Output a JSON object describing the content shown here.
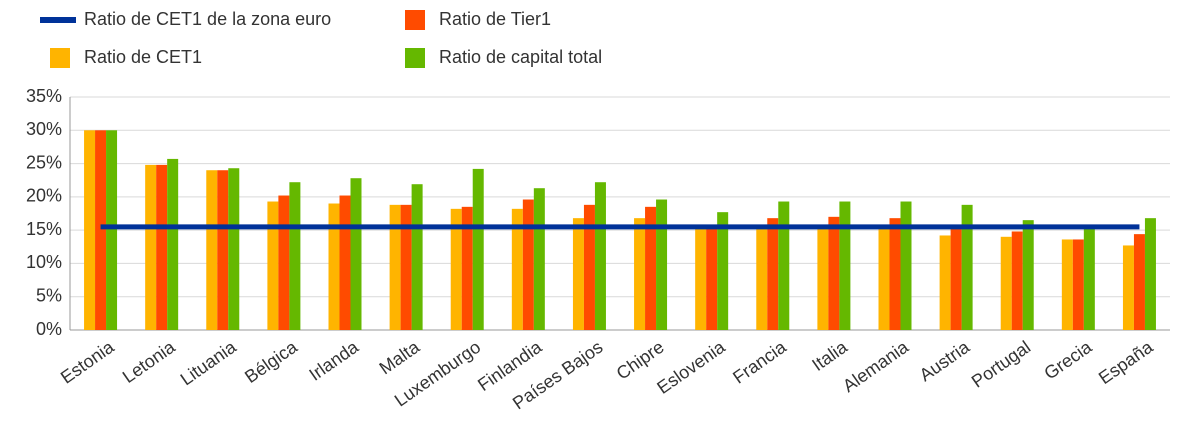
{
  "chart_data": {
    "type": "bar",
    "categories": [
      "Estonia",
      "Letonia",
      "Lituania",
      "Bélgica",
      "Irlanda",
      "Malta",
      "Luxemburgo",
      "Finlandia",
      "Países Bajos",
      "Chipre",
      "Eslovenia",
      "Francia",
      "Italia",
      "Alemania",
      "Austria",
      "Portugal",
      "Grecia",
      "España"
    ],
    "series": [
      {
        "name": "Ratio de CET1 de la zona euro",
        "color": "#003299",
        "type": "line",
        "values": [
          15.5,
          15.5,
          15.5,
          15.5,
          15.5,
          15.5,
          15.5,
          15.5,
          15.5,
          15.5,
          15.5,
          15.5,
          15.5,
          15.5,
          15.5,
          15.5,
          15.5,
          15.5
        ]
      },
      {
        "name": "Ratio de Tier1",
        "color": "#ff4b00",
        "values": [
          30,
          24.8,
          24,
          20.2,
          20.2,
          18.8,
          18.5,
          19.6,
          18.8,
          18.5,
          15.5,
          16.8,
          17,
          16.8,
          15.2,
          14.8,
          13.6,
          14.4
        ]
      },
      {
        "name": "Ratio de CET1",
        "color": "#ffb400",
        "values": [
          30,
          24.8,
          24,
          19.3,
          19,
          18.8,
          18.2,
          18.2,
          16.8,
          16.8,
          15.5,
          15.5,
          15.3,
          15.5,
          14.2,
          14,
          13.6,
          12.7
        ]
      },
      {
        "name": "Ratio de capital total",
        "color": "#65b800",
        "values": [
          30,
          25.7,
          24.3,
          22.2,
          22.8,
          21.9,
          24.2,
          21.3,
          22.2,
          19.6,
          17.7,
          19.3,
          19.3,
          19.3,
          18.8,
          16.5,
          15.4,
          16.8
        ]
      }
    ],
    "bar_order": [
      2,
      1,
      3
    ],
    "ylim": [
      0,
      35
    ],
    "yticks": [
      {
        "value": 0,
        "label": "0%"
      },
      {
        "value": 5,
        "label": "5%"
      },
      {
        "value": 10,
        "label": "10%"
      },
      {
        "value": 15,
        "label": "15%"
      },
      {
        "value": 20,
        "label": "20%"
      },
      {
        "value": 25,
        "label": "25%"
      },
      {
        "value": 30,
        "label": "30%"
      },
      {
        "value": 35,
        "label": "35%"
      }
    ],
    "grid": true
  }
}
